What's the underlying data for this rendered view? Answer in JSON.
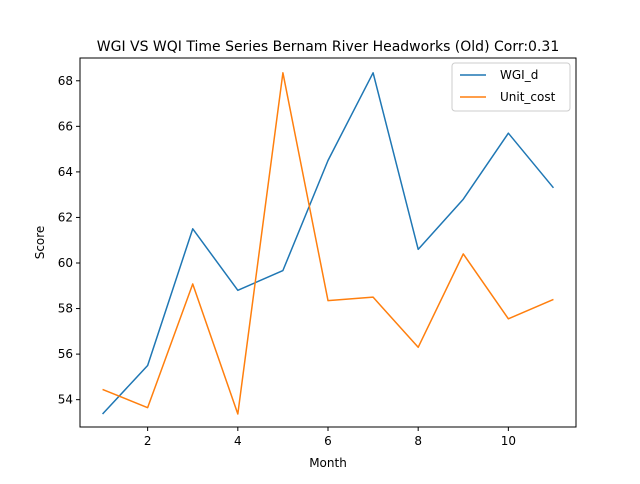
{
  "chart_data": {
    "type": "line",
    "title": "WGI VS WQI Time Series Bernam River Headworks (Old) Corr:0.31",
    "xlabel": "Month",
    "ylabel": "Score",
    "xlim": [
      0.5,
      11.5
    ],
    "ylim": [
      52.8,
      69.0
    ],
    "xticks": [
      2,
      4,
      6,
      8,
      10
    ],
    "yticks": [
      54,
      56,
      58,
      60,
      62,
      64,
      66,
      68
    ],
    "grid": false,
    "legend_position": "top-right",
    "x": [
      1,
      2,
      3,
      4,
      5,
      6,
      7,
      8,
      9,
      10,
      11
    ],
    "series": [
      {
        "name": "WGI_d",
        "color": "#1f77b4",
        "values": [
          53.37,
          55.5,
          61.5,
          58.8,
          59.67,
          64.5,
          68.35,
          60.6,
          62.8,
          65.7,
          63.3
        ]
      },
      {
        "name": "Unit_cost",
        "color": "#ff7f0e",
        "values": [
          54.45,
          53.65,
          59.08,
          53.37,
          68.35,
          58.35,
          58.5,
          56.3,
          60.4,
          57.55,
          58.4
        ]
      }
    ]
  }
}
